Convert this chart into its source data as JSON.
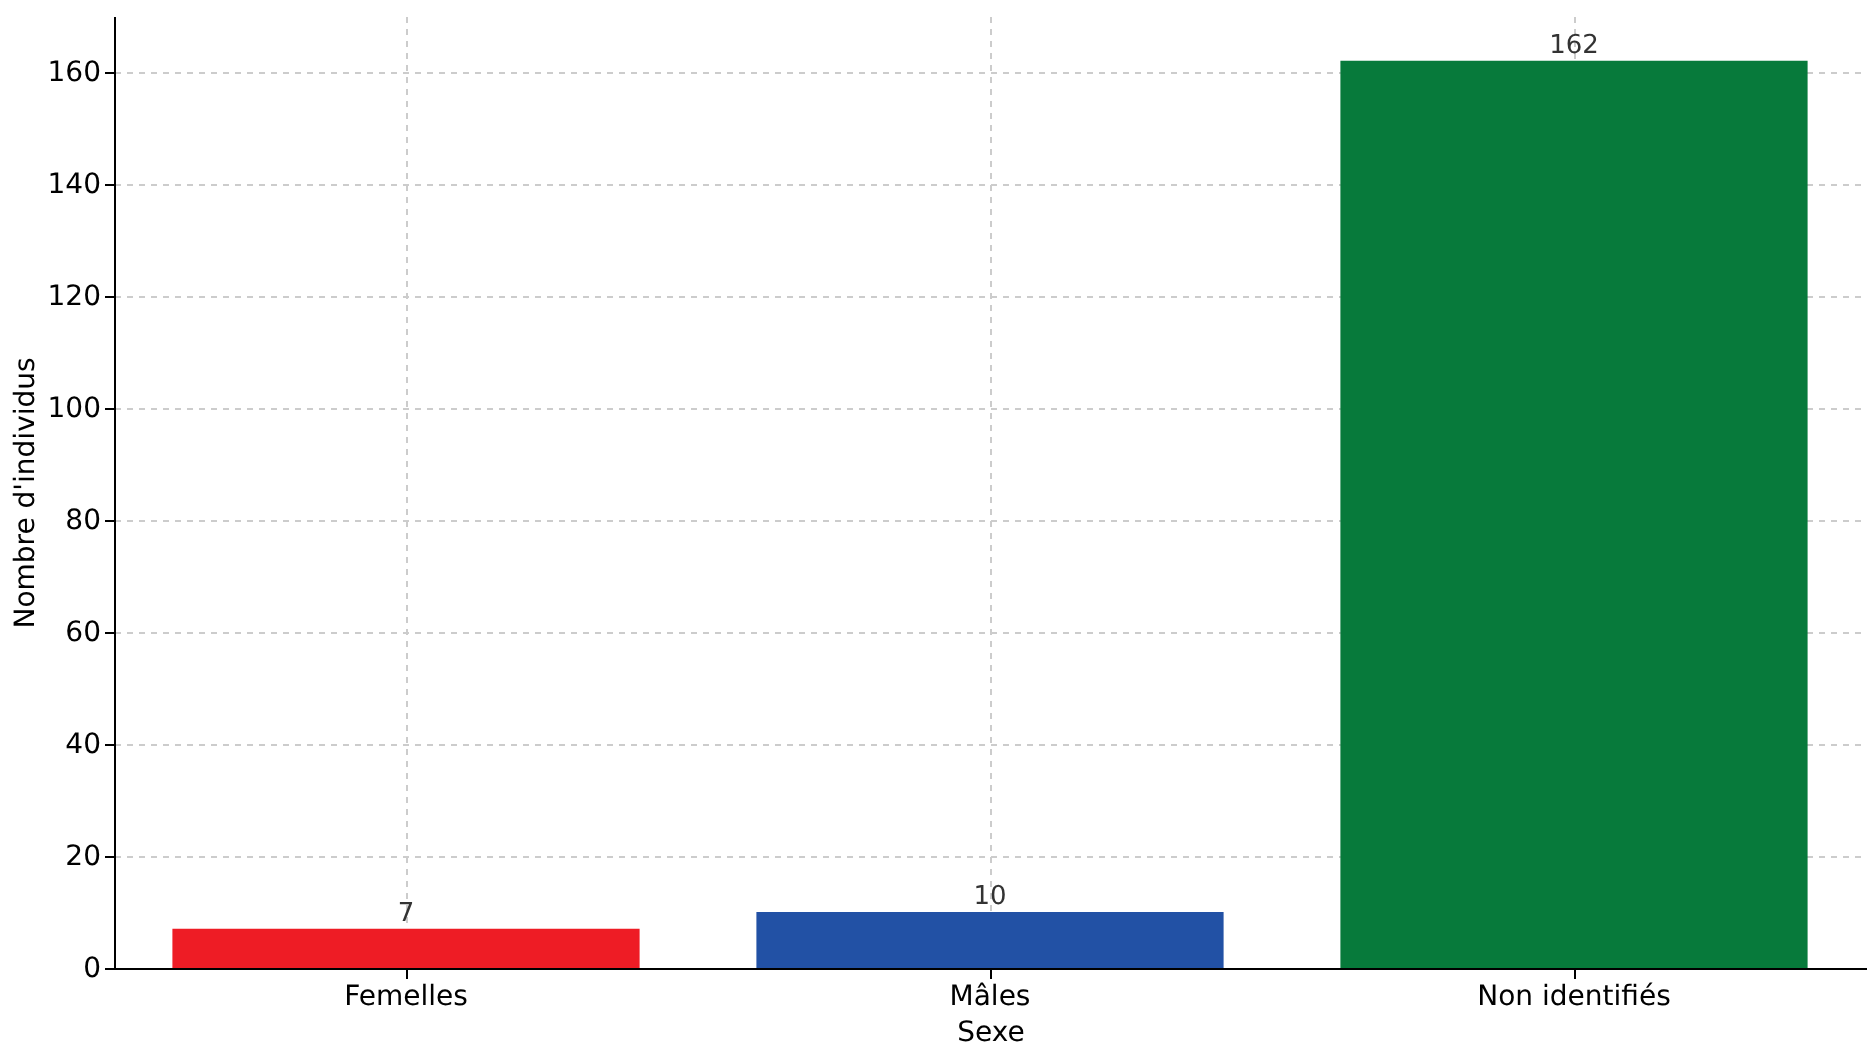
{
  "chart_data": {
    "type": "bar",
    "xlabel": "Sexe",
    "ylabel": "Nombre d'individus",
    "categories": [
      "Femelles",
      "Mâles",
      "Non identifiés"
    ],
    "values": [
      7,
      10,
      162
    ],
    "colors": [
      "#ee1c25",
      "#2251a5",
      "#077a3b"
    ],
    "ylim": [
      0,
      170
    ],
    "yticks": [
      0,
      20,
      40,
      60,
      80,
      100,
      120,
      140,
      160
    ],
    "grid": true,
    "data_labels": true
  }
}
